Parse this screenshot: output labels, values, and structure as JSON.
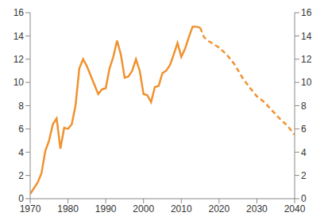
{
  "chart_data": {
    "type": "line",
    "x": [
      1970,
      1971,
      1972,
      1973,
      1974,
      1975,
      1976,
      1977,
      1978,
      1979,
      1980,
      1981,
      1982,
      1983,
      1984,
      1985,
      1986,
      1987,
      1988,
      1989,
      1990,
      1991,
      1992,
      1993,
      1994,
      1995,
      1996,
      1997,
      1998,
      1999,
      2000,
      2001,
      2002,
      2003,
      2004,
      2005,
      2006,
      2007,
      2008,
      2009,
      2010,
      2011,
      2012,
      2013,
      2014,
      2015,
      2016,
      2017,
      2018,
      2020,
      2022,
      2024,
      2026,
      2028,
      2030,
      2032,
      2034,
      2036,
      2038,
      2040
    ],
    "series": [
      {
        "color": "#f0922f",
        "line_style": "solid",
        "values": [
          0.4,
          0.9,
          1.4,
          2.2,
          4.1,
          5.0,
          6.4,
          6.9,
          4.3,
          6.1,
          6.0,
          6.4,
          8.0,
          11.2,
          12.0,
          11.4,
          10.6,
          9.8,
          9.0,
          9.4,
          9.5,
          11.2,
          12.2,
          13.6,
          12.4,
          10.4,
          10.5,
          11.0,
          12.0,
          11.0,
          9.0,
          8.9,
          8.3,
          9.6,
          9.7,
          10.8,
          11.0,
          11.5,
          12.4,
          13.4,
          12.2,
          12.9,
          13.9,
          14.8,
          14.8,
          14.7,
          null,
          null,
          null,
          null,
          null,
          null,
          null,
          null,
          null,
          null,
          null,
          null,
          null,
          null
        ]
      },
      {
        "color": "#f0922f",
        "line_style": "dashed",
        "values": [
          null,
          null,
          null,
          null,
          null,
          null,
          null,
          null,
          null,
          null,
          null,
          null,
          null,
          null,
          null,
          null,
          null,
          null,
          null,
          null,
          null,
          null,
          null,
          null,
          null,
          null,
          null,
          null,
          null,
          null,
          null,
          null,
          null,
          null,
          null,
          null,
          null,
          null,
          null,
          null,
          null,
          null,
          null,
          null,
          null,
          14.7,
          13.9,
          13.6,
          13.4,
          13.0,
          12.4,
          11.6,
          10.5,
          9.6,
          8.8,
          8.3,
          7.6,
          6.9,
          6.3,
          5.5
        ]
      }
    ],
    "xlim": [
      1970,
      2040
    ],
    "xticks": [
      1970,
      1980,
      1990,
      2000,
      2010,
      2020,
      2030,
      2040
    ],
    "ylim": [
      0,
      16
    ],
    "yticks": [
      0,
      2,
      4,
      6,
      8,
      10,
      12,
      14,
      16
    ],
    "y2lim": [
      0,
      16
    ],
    "y2ticks": [
      0,
      2,
      4,
      6,
      8,
      10,
      12,
      14,
      16
    ],
    "grid": false
  }
}
